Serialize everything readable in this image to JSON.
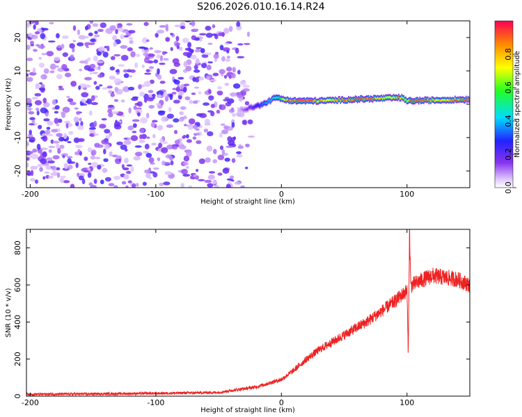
{
  "title": "S206.2026.010.16.14.R24",
  "chart_data": [
    {
      "type": "heatmap",
      "xlabel": "Height of straight line (km)",
      "ylabel": "Frequency (Hz)",
      "xlim": [
        -203,
        150
      ],
      "ylim": [
        -25,
        25
      ],
      "xticks": [
        -200,
        -100,
        0,
        100
      ],
      "yticks": [
        -20,
        -10,
        0,
        10,
        20
      ],
      "colorbar": {
        "label": "Normalized spectral amplitude",
        "range": [
          0.0,
          1.0
        ],
        "ticks": [
          0.0,
          0.2,
          0.4,
          0.6,
          0.8
        ],
        "tick_labels": [
          "0.0",
          "0.2",
          "0.4",
          "0.6",
          "0.8"
        ]
      },
      "ridge": {
        "description_points": [
          {
            "x": -35,
            "y": -2
          },
          {
            "x": -25,
            "y": -1
          },
          {
            "x": -15,
            "y": 0
          },
          {
            "x": -5,
            "y": 2
          },
          {
            "x": 0,
            "y": 1.5
          },
          {
            "x": 10,
            "y": 1
          },
          {
            "x": 30,
            "y": 1
          },
          {
            "x": 60,
            "y": 1.5
          },
          {
            "x": 95,
            "y": 2
          },
          {
            "x": 100,
            "y": 1
          },
          {
            "x": 150,
            "y": 1.5
          }
        ],
        "peak_amplitude": 0.95
      },
      "noise_region": {
        "x_from": -203,
        "x_to": -30,
        "amplitude_range": [
          0.05,
          0.25
        ]
      }
    },
    {
      "type": "line",
      "xlabel": "Height of straight line (km)",
      "ylabel": "SNR (10 * v/v)",
      "xlim": [
        -203,
        150
      ],
      "ylim": [
        0,
        900
      ],
      "xticks": [
        -200,
        -100,
        0,
        100
      ],
      "yticks": [
        0,
        200,
        400,
        600,
        800
      ],
      "series": [
        {
          "name": "SNR",
          "color": "#ee2222",
          "x": [
            -203,
            -150,
            -100,
            -50,
            -20,
            0,
            10,
            20,
            30,
            40,
            50,
            60,
            70,
            80,
            90,
            95,
            100,
            101,
            102,
            103,
            104,
            110,
            120,
            130,
            140,
            150
          ],
          "y": [
            10,
            12,
            15,
            20,
            50,
            90,
            140,
            200,
            250,
            290,
            330,
            370,
            410,
            460,
            510,
            540,
            570,
            220,
            900,
            590,
            600,
            620,
            650,
            640,
            630,
            600
          ]
        }
      ]
    }
  ],
  "colors": {
    "line": "#ee2222",
    "noise": "#8833ee"
  }
}
